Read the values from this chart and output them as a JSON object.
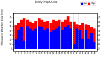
{
  "title": "Daily High/Low",
  "ylabel_left": "Milwaukee Weather Dew Point",
  "high_color": "#ff0000",
  "low_color": "#0000ff",
  "bg_color": "#ffffff",
  "plot_bg": "#ffffff",
  "ylim": [
    -5,
    80
  ],
  "yticks": [
    0,
    10,
    20,
    30,
    40,
    50,
    60,
    70
  ],
  "days": [
    "1",
    "2",
    "3",
    "4",
    "5",
    "6",
    "7",
    "8",
    "9",
    "10",
    "11",
    "12",
    "13",
    "14",
    "15",
    "16",
    "17",
    "18",
    "19",
    "20",
    "21",
    "22",
    "23",
    "24",
    "25",
    "26",
    "27",
    "28"
  ],
  "highs": [
    52,
    58,
    65,
    68,
    65,
    60,
    58,
    62,
    68,
    65,
    60,
    62,
    58,
    65,
    62,
    65,
    60,
    65,
    72,
    60,
    60,
    55,
    52,
    58,
    55,
    52,
    48,
    45
  ],
  "lows": [
    20,
    42,
    48,
    18,
    50,
    45,
    40,
    45,
    50,
    48,
    42,
    45,
    38,
    42,
    45,
    50,
    42,
    48,
    52,
    45,
    10,
    45,
    42,
    22,
    42,
    22,
    35,
    15
  ],
  "dashed_vline_x": [
    19.5,
    21.5
  ],
  "bar_width": 0.45
}
